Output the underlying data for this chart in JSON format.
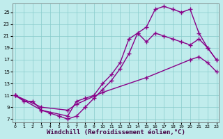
{
  "background_color": "#c0ecec",
  "grid_color": "#88cccc",
  "line_color": "#880088",
  "marker": "+",
  "markersize": 5,
  "linewidth": 1.0,
  "xlabel": "Windchill (Refroidissement éolien,°C)",
  "xlabel_fontsize": 6.5,
  "xlim": [
    -0.3,
    23.3
  ],
  "ylim": [
    6.5,
    26.5
  ],
  "ytick_values": [
    7,
    9,
    11,
    13,
    15,
    17,
    19,
    21,
    23,
    25
  ],
  "xtick_values": [
    0,
    1,
    2,
    3,
    4,
    5,
    6,
    7,
    8,
    9,
    10,
    11,
    12,
    13,
    14,
    15,
    16,
    17,
    18,
    19,
    20,
    21,
    22,
    23
  ],
  "curve1_x": [
    0,
    1,
    2,
    3,
    4,
    5,
    6,
    7,
    8,
    9,
    10,
    11,
    12,
    13,
    14,
    15,
    16,
    17,
    18,
    19,
    20,
    21,
    22,
    23
  ],
  "curve1_y": [
    11,
    10,
    10,
    8.5,
    8,
    7.5,
    7.0,
    7.5,
    9.0,
    10.5,
    12.0,
    13.5,
    15.5,
    18.0,
    21.5,
    22.5,
    25.5,
    26.0,
    25.5,
    25.0,
    25.5,
    21.5,
    19.0,
    17.0
  ],
  "curve2_x": [
    0,
    3,
    6,
    7,
    8,
    9,
    10,
    11,
    12,
    13,
    14,
    15,
    16,
    17,
    18,
    19,
    20,
    21,
    22,
    23
  ],
  "curve2_y": [
    11,
    8.5,
    7.5,
    10.0,
    10.5,
    11.0,
    13.0,
    14.5,
    16.5,
    20.5,
    21.5,
    20.0,
    21.5,
    21.0,
    20.5,
    20.0,
    19.5,
    20.5,
    19.0,
    17.0
  ],
  "curve3_x": [
    0,
    3,
    6,
    7,
    10,
    15,
    20,
    21,
    22,
    23
  ],
  "curve3_y": [
    11,
    9.0,
    8.5,
    9.5,
    11.5,
    14.0,
    17.0,
    17.5,
    16.5,
    15.0
  ]
}
